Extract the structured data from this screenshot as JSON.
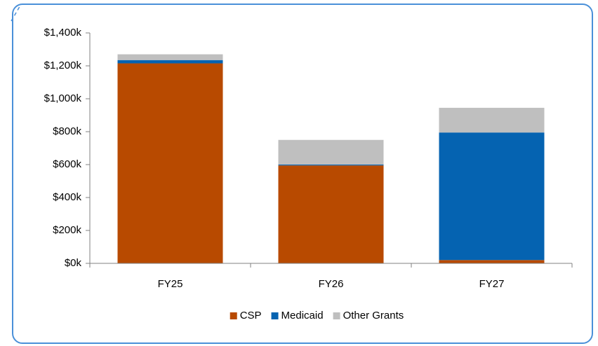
{
  "chart_data": {
    "type": "stacked_bar",
    "categories": [
      "FY25",
      "FY26",
      "FY27"
    ],
    "series": [
      {
        "name": "CSP",
        "color": "#b84a00",
        "values": [
          1215,
          595,
          20
        ]
      },
      {
        "name": "Medicaid",
        "color": "#0563b1",
        "values": [
          20,
          5,
          775
        ]
      },
      {
        "name": "Other Grants",
        "color": "#bfbfbf",
        "values": [
          35,
          150,
          150
        ]
      }
    ],
    "ylim": [
      0,
      1400
    ],
    "yticks": [
      {
        "value": 0,
        "label": "$0k"
      },
      {
        "value": 200,
        "label": "$200k"
      },
      {
        "value": 400,
        "label": "$400k"
      },
      {
        "value": 600,
        "label": "$600k"
      },
      {
        "value": 800,
        "label": "$800k"
      },
      {
        "value": 1000,
        "label": "$1,000k"
      },
      {
        "value": 1200,
        "label": "$1,200k"
      },
      {
        "value": 1400,
        "label": "$1,400k"
      }
    ],
    "legend": "bottom"
  }
}
